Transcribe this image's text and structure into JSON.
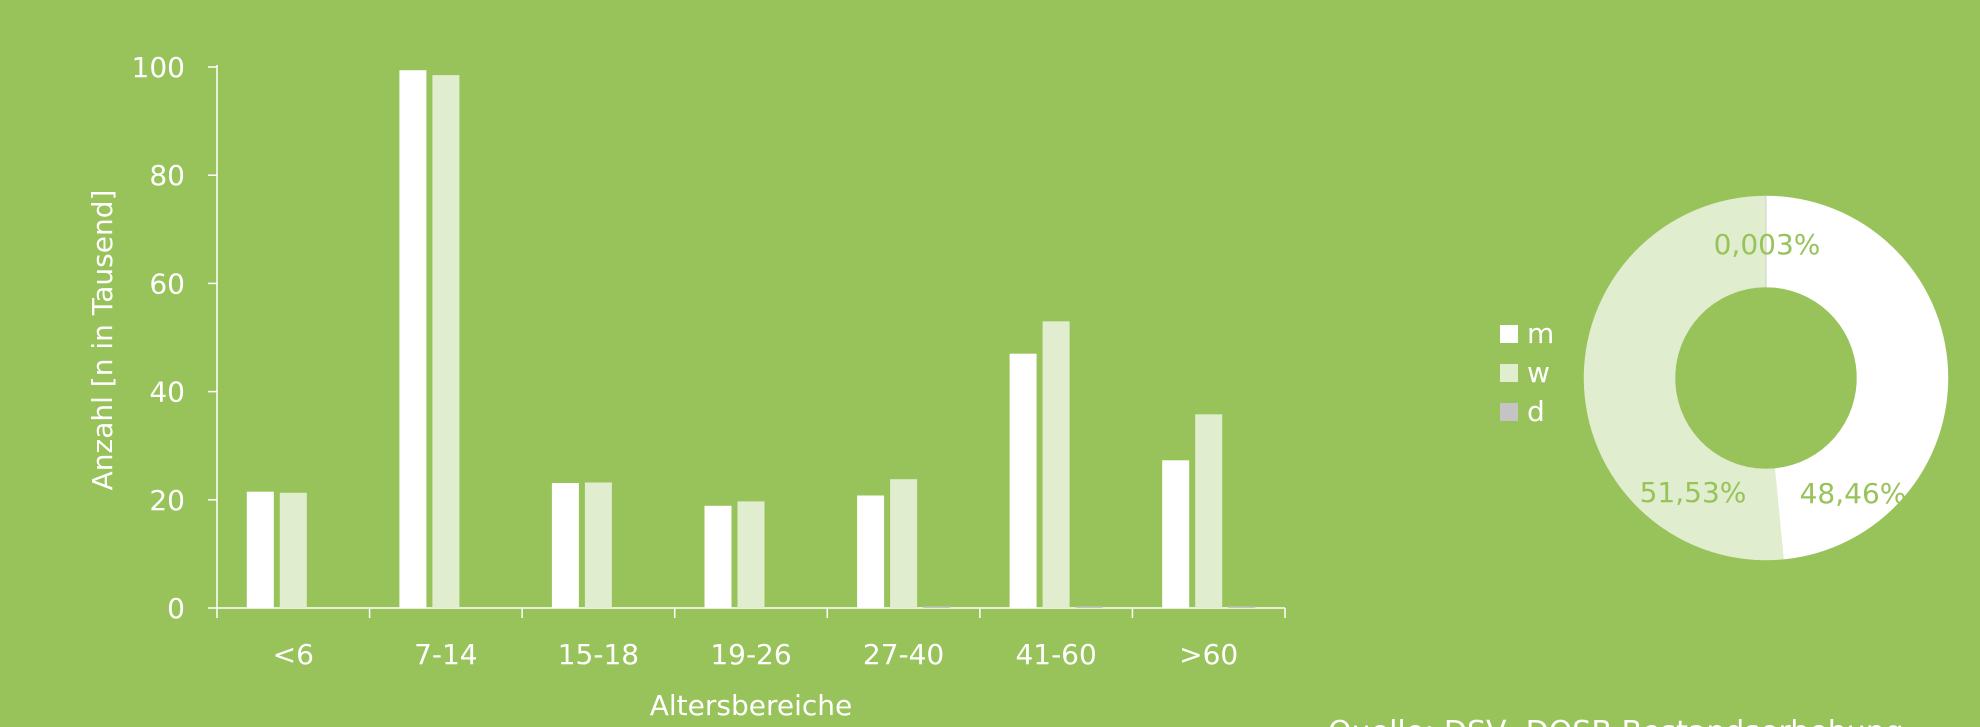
{
  "colors": {
    "background": "#98c35a",
    "m": "#ffffff",
    "w": "#e0edcf",
    "d": "#c4c4c4",
    "axis": "#ffffff",
    "slice_label": "#98c35a"
  },
  "chart_data": [
    {
      "type": "bar",
      "xlabel": "Altersbereiche",
      "ylabel": "Anzahl [n in Tausend]",
      "ylim": [
        0,
        100
      ],
      "yticks": [
        0,
        20,
        40,
        60,
        80,
        100
      ],
      "grid": false,
      "categories": [
        "<6",
        "7-14",
        "15-18",
        "19-26",
        "27-40",
        "41-60",
        ">60"
      ],
      "series": [
        {
          "name": "m",
          "values": [
            21.5,
            99.4,
            23.1,
            18.9,
            20.8,
            47.0,
            27.3
          ]
        },
        {
          "name": "w",
          "values": [
            21.3,
            98.5,
            23.2,
            19.7,
            23.8,
            53.0,
            35.8
          ]
        },
        {
          "name": "d",
          "values": [
            0,
            0,
            0,
            0,
            0.2,
            0.2,
            0.2
          ]
        }
      ]
    },
    {
      "type": "pie",
      "donut": true,
      "legend_position": "left",
      "slices": [
        {
          "name": "m",
          "value": 48.46,
          "label": "48,46%"
        },
        {
          "name": "w",
          "value": 51.53,
          "label": "51,53%"
        },
        {
          "name": "d",
          "value": 0.003,
          "label": "0,003%"
        }
      ]
    }
  ],
  "legend": [
    {
      "key": "m",
      "label": "m"
    },
    {
      "key": "w",
      "label": "w"
    },
    {
      "key": "d",
      "label": "d"
    }
  ],
  "source": "Quelle: DSV, DOSB Bestandserhebung"
}
